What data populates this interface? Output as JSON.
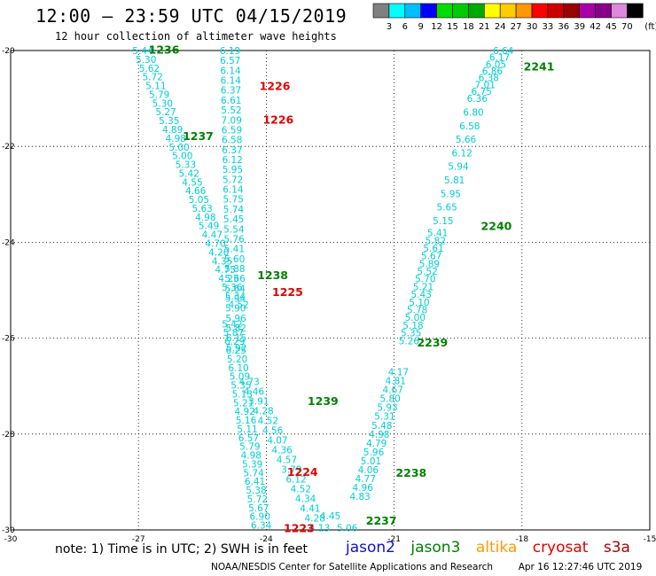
{
  "title": "12:00 – 23:59 UTC 04/15/2019",
  "subtitle": "12 hour collection of altimeter wave heights",
  "note": "note: 1) Time is in UTC; 2) SWH is in feet",
  "credit": "NOAA/NESDIS Center for Satellite Applications and Research",
  "timestamp": "Apr 16 12:27:46 UTC 2019",
  "satellites": [
    {
      "name": "jason2",
      "color": "#1010d0"
    },
    {
      "name": "jason3",
      "color": "#008000"
    },
    {
      "name": "altika",
      "color": "#ff9900"
    },
    {
      "name": "cryosat",
      "color": "#e00000"
    },
    {
      "name": "s3a",
      "color": "#b00000"
    }
  ],
  "colorbar": {
    "unit": "(ft)",
    "colors": [
      "#808080",
      "#00ffff",
      "#00bfff",
      "#0000ff",
      "#00dd00",
      "#00cc00",
      "#00aa00",
      "#ffff00",
      "#ffcc00",
      "#ff9900",
      "#ff0000",
      "#cc0000",
      "#990000",
      "#aa00aa",
      "#880088",
      "#dd88dd",
      "#000000"
    ],
    "ticks": [
      "3",
      "6",
      "9",
      "12",
      "15",
      "18",
      "21",
      "24",
      "27",
      "30",
      "33",
      "36",
      "39",
      "42",
      "45",
      "70"
    ]
  },
  "chart_data": {
    "type": "scatter",
    "xlim": [
      -30,
      -15
    ],
    "ylim": [
      -30,
      -20
    ],
    "xticks": [
      "-30",
      "-27",
      "-24",
      "-21",
      "-18",
      "-15"
    ],
    "yticks": [
      "-20",
      "-22",
      "-24",
      "-26",
      "-28",
      "-30"
    ],
    "grid": true,
    "value_color": "#00ced1",
    "passes": [
      {
        "label": "1236",
        "satellite": "jason3",
        "label_lon": -26.4,
        "label_lat": -19.97,
        "start": [
          -26.9,
          -20.0
        ],
        "end": [
          -24.65,
          -25.3
        ],
        "values": [
          "5.44",
          "5.30",
          "5.62",
          "5.72",
          "5.11",
          "5.79",
          "5.30",
          "5.27",
          "5.35",
          "4.89",
          "4.98",
          "5.00",
          "5.00",
          "5.33",
          "5.42",
          "4.55",
          "4.66",
          "5.05",
          "5.63",
          "4.98",
          "5.49",
          "4.47",
          "4.70",
          "4.20",
          "4.35",
          "4.75",
          "4.23",
          "5.36",
          "5.34",
          "4.52"
        ]
      },
      {
        "label": "1237",
        "satellite": "jason3",
        "label_lon": -25.6,
        "label_lat": -21.77,
        "start": [
          -24.85,
          -20.0
        ],
        "end": [
          -24.7,
          -26.2
        ],
        "values": [
          "6.19",
          "6.57",
          "6.14",
          "6.14",
          "6.37",
          "6.61",
          "5.52",
          "7.09",
          "6.59",
          "6.58",
          "6.37",
          "6.12",
          "5.95",
          "5.72",
          "6.14",
          "5.75",
          "5.74",
          "5.45",
          "5.54",
          "5.76",
          "5.41",
          "5.60",
          "5.88",
          "5.66",
          "5.64",
          "5.94",
          "5.90",
          "5.96",
          "5.82",
          "6.15",
          "5.92"
        ]
      },
      {
        "label": "1238",
        "satellite": "jason3",
        "label_lon": -23.85,
        "label_lat": -24.68,
        "start": [
          -24.8,
          -25.7
        ],
        "end": [
          -24.12,
          -29.9
        ],
        "values": [
          "5.42",
          "5.87",
          "6.29",
          "6.25",
          "5.20",
          "6.10",
          "5.09",
          "5.35",
          "5.13",
          "5.21",
          "4.92",
          "5.16",
          "5.11",
          "6.57",
          "5.79",
          "4.98",
          "5.39",
          "5.74",
          "6.41",
          "5.38",
          "5.72",
          "5.67",
          "6.90",
          "6.34"
        ]
      },
      {
        "label": "1239",
        "satellite": "jason3",
        "label_lon": -22.67,
        "label_lat": -27.3,
        "start": [
          -24.4,
          -26.9
        ],
        "end": [
          -22.75,
          -29.95
        ],
        "values": [
          "4.73",
          "4.46",
          "3.91",
          "4.28",
          "4.52",
          "4.56",
          "4.07",
          "4.36",
          "4.57",
          "3.79",
          "6.12",
          "4.52",
          "4.34",
          "4.41",
          "4.28",
          "5.13"
        ]
      },
      {
        "label": "1224",
        "satellite": "cryosat",
        "label_lon": -23.15,
        "label_lat": -28.78,
        "start": [
          0,
          0
        ],
        "end": [
          0,
          0
        ],
        "values": []
      },
      {
        "label": "1225",
        "satellite": "cryosat",
        "label_lon": -23.5,
        "label_lat": -25.03,
        "start": [
          0,
          0
        ],
        "end": [
          0,
          0
        ],
        "values": []
      },
      {
        "label": "1226",
        "satellite": "cryosat",
        "label_lon": -23.8,
        "label_lat": -20.73,
        "start": [
          0,
          0
        ],
        "end": [
          0,
          0
        ],
        "values": []
      },
      {
        "label": "1226",
        "satellite": "cryosat",
        "label_lon": -23.72,
        "label_lat": -21.43,
        "start": [
          0,
          0
        ],
        "end": [
          0,
          0
        ],
        "values": []
      },
      {
        "label": "1223",
        "satellite": "cryosat",
        "label_lon": -23.23,
        "label_lat": -29.95,
        "start": [
          0,
          0
        ],
        "end": [
          0,
          0
        ],
        "values": []
      },
      {
        "label": "2237",
        "satellite": "jason3",
        "label_lon": -21.3,
        "label_lat": -29.8,
        "start": [
          -22.1,
          -29.95
        ],
        "end": [
          -22.5,
          -29.7
        ],
        "values": [
          "5.06",
          "4.45"
        ]
      },
      {
        "label": "2238",
        "satellite": "jason3",
        "label_lon": -20.6,
        "label_lat": -28.8,
        "start": [
          -21.8,
          -29.3
        ],
        "end": [
          -20.9,
          -26.7
        ],
        "values": [
          "4.83",
          "4.96",
          "4.77",
          "4.06",
          "5.01",
          "5.96",
          "4.79",
          "4.98",
          "5.48",
          "5.31",
          "5.93",
          "5.80",
          "4.67",
          "4.81",
          "4.17"
        ]
      },
      {
        "label": "2239",
        "satellite": "jason3",
        "label_lon": -20.1,
        "label_lat": -26.08,
        "start": [
          -20.65,
          -26.05
        ],
        "end": [
          -19.98,
          -23.8
        ],
        "values": [
          "5.26",
          "5.35",
          "5.18",
          "5.00",
          "5.78",
          "5.10",
          "5.43",
          "5.21",
          "5.70",
          "5.52",
          "5.89",
          "5.67",
          "5.61",
          "5.82",
          "5.41"
        ]
      },
      {
        "label": "2240",
        "satellite": "jason3",
        "label_lon": -18.6,
        "label_lat": -23.65,
        "start": [
          -19.85,
          -23.55
        ],
        "end": [
          -19.05,
          -21.0
        ],
        "values": [
          "5.15",
          "5.65",
          "5.95",
          "5.81",
          "5.94",
          "6.12",
          "5.66",
          "6.58",
          "6.80",
          "6.36"
        ]
      },
      {
        "label": "2241",
        "satellite": "jason3",
        "label_lon": -17.6,
        "label_lat": -20.32,
        "start": [
          -18.95,
          -20.85
        ],
        "end": [
          -18.44,
          -20.0
        ],
        "values": [
          "6.75",
          "7.01",
          "6.38",
          "6.86",
          "6.05",
          "6.17",
          "6.64"
        ]
      }
    ]
  }
}
